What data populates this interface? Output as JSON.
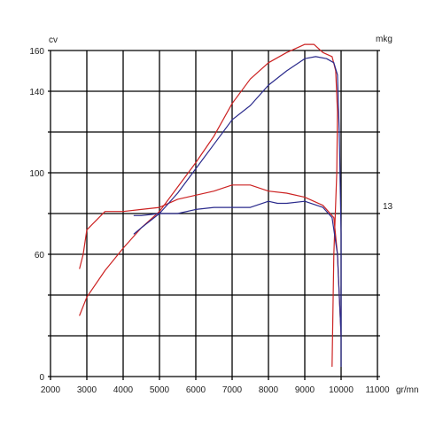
{
  "chart_data": {
    "type": "line",
    "x_unit_label": "gr/mn",
    "left_unit_label": "cv",
    "right_unit_label": "mkg",
    "xlim": [
      2000,
      11000
    ],
    "ylim": [
      0,
      160
    ],
    "x_tick_labels": [
      "2000",
      "3000",
      "4000",
      "5000",
      "6000",
      "7000",
      "8000",
      "9000",
      "10000",
      "11000"
    ],
    "x_tick_values": [
      2000,
      3000,
      4000,
      5000,
      6000,
      7000,
      8000,
      9000,
      10000,
      11000
    ],
    "left_tick_labels": [
      "160",
      "140",
      "100",
      "60",
      "0"
    ],
    "left_tick_values": [
      160,
      140,
      100,
      60,
      0
    ],
    "right_tick_labels": [
      "13"
    ],
    "right_tick_values": [
      84
    ],
    "grid": true,
    "colors": {
      "red": "#cc2222",
      "blue": "#2a2a8c",
      "grid": "#000000"
    },
    "series": [
      {
        "color": "red",
        "x": [
          2800,
          3000,
          3500,
          4000,
          4500,
          5000,
          5500,
          6000,
          6500,
          7000,
          7500,
          8000,
          8500,
          8750,
          9000,
          9250,
          9500,
          9750,
          9850,
          9900,
          9880,
          9800,
          9750
        ],
        "y": [
          30,
          39,
          52,
          63,
          73,
          81,
          93,
          105,
          118,
          134,
          146,
          154,
          159,
          161,
          163,
          163,
          159,
          157,
          150,
          130,
          100,
          60,
          5
        ]
      },
      {
        "color": "red",
        "x": [
          2800,
          2900,
          3000,
          3500,
          4000,
          4500,
          5000,
          5500,
          6000,
          6500,
          7000,
          7500,
          8000,
          8500,
          9000,
          9500,
          9800,
          9900,
          9950,
          10000
        ],
        "y": [
          53,
          60,
          72,
          81,
          81,
          82,
          83,
          87,
          89,
          91,
          94,
          94,
          91,
          90,
          88,
          84,
          78,
          60,
          40,
          20
        ]
      },
      {
        "color": "blue",
        "x": [
          4300,
          4500,
          5000,
          5500,
          6000,
          6500,
          7000,
          7500,
          8000,
          8500,
          9000,
          9300,
          9600,
          9800,
          9900,
          9950,
          10000,
          10000
        ],
        "y": [
          70,
          73,
          80,
          90,
          102,
          114,
          126,
          133,
          143,
          150,
          156,
          157,
          156,
          154,
          148,
          120,
          70,
          5
        ]
      },
      {
        "color": "blue",
        "x": [
          4300,
          4500,
          5000,
          5500,
          6000,
          6500,
          7000,
          7500,
          8000,
          8250,
          8500,
          9000,
          9500,
          9750,
          9900,
          9950,
          10000
        ],
        "y": [
          79,
          79,
          80,
          80,
          82,
          83,
          83,
          83,
          86,
          85,
          85,
          86,
          83,
          78,
          60,
          40,
          20
        ]
      }
    ]
  }
}
